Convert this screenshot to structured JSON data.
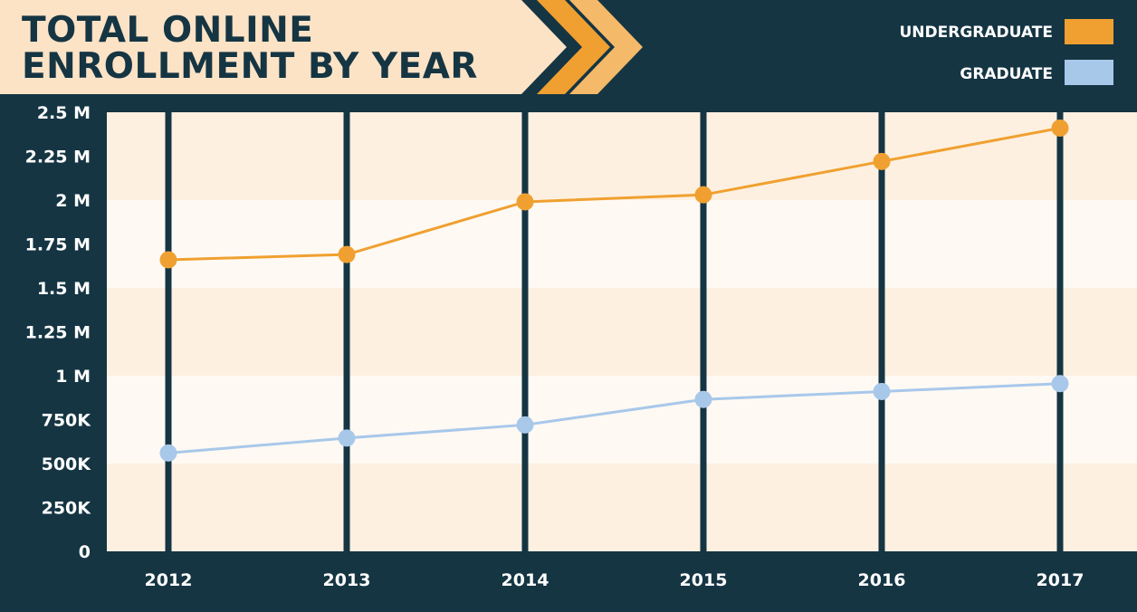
{
  "colors": {
    "background": "#153543",
    "title_banner": "#fde3c6",
    "chevron_light": "#f4b969",
    "undergraduate": "#f0a030",
    "graduate": "#a8c8ea",
    "band_light": "#fef9f3",
    "band_dark": "#fdf0e0",
    "gridline": "#153543"
  },
  "header": {
    "title_line1": "TOTAL ONLINE",
    "title_line2": "ENROLLMENT BY YEAR"
  },
  "chart_data": {
    "type": "line",
    "title": "TOTAL ONLINE ENROLLMENT BY YEAR",
    "x": [
      "2012",
      "2013",
      "2014",
      "2015",
      "2016",
      "2017"
    ],
    "series": [
      {
        "name": "UNDERGRADUATE",
        "color": "#f0a030",
        "values": [
          1660000,
          1690000,
          1990000,
          2030000,
          2220000,
          2410000
        ]
      },
      {
        "name": "GRADUATE",
        "color": "#a8c8ea",
        "values": [
          560000,
          645000,
          720000,
          865000,
          910000,
          955000
        ]
      }
    ],
    "ylim": [
      0,
      2500000
    ],
    "y_ticks": [
      0,
      250000,
      500000,
      750000,
      1000000,
      1250000,
      1500000,
      1750000,
      2000000,
      2250000,
      2500000
    ],
    "y_tick_labels": [
      "0",
      "250K",
      "500K",
      "750K",
      "1 M",
      "1.25 M",
      "1.5 M",
      "1.75 M",
      "2 M",
      "2.25 M",
      "2.5 M"
    ],
    "legend_position": "top-right",
    "grid": "vertical lines at each year, alternating horizontal bands"
  }
}
